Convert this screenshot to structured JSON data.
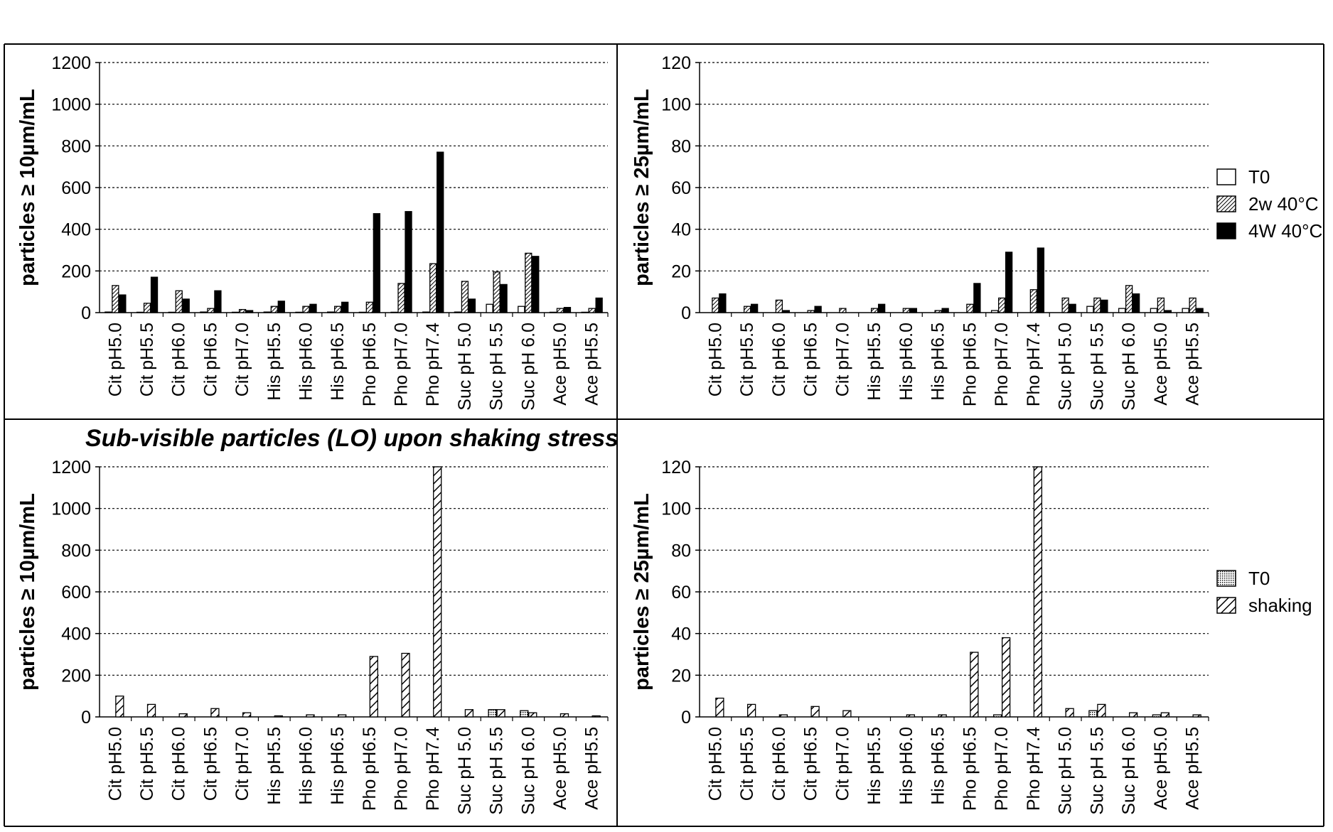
{
  "section_title": "Sub-visible particles (LO) upon shaking stress",
  "colors": {
    "T0": "#ffffff",
    "2w": "hatch-dense",
    "4w": "#000000",
    "shaking": "hatch-wide"
  },
  "legends": {
    "thermal": [
      "T0",
      "2w 40°C",
      "4W 40°C"
    ],
    "shaking": [
      "T0",
      "shaking"
    ]
  },
  "chart_data": [
    {
      "type": "bar",
      "ylabel": "particles ≥ 10µm/mL",
      "ylim": [
        0,
        1200
      ],
      "yticks": [
        "0",
        "200",
        "400",
        "600",
        "800",
        "1000",
        "1200"
      ],
      "grid": true,
      "categories": [
        "Cit pH5.0",
        "Cit pH5.5",
        "Cit pH6.0",
        "Cit pH6.5",
        "Cit pH7.0",
        "His pH5.5",
        "His pH6.0",
        "His pH6.5",
        "Pho pH6.5",
        "Pho pH7.0",
        "Pho pH7.4",
        "Suc pH 5.0",
        "Suc pH 5.5",
        "Suc pH 6.0",
        "Ace pH5.0",
        "Ace pH5.5"
      ],
      "series": [
        {
          "name": "T0",
          "values": [
            3,
            2,
            2,
            3,
            2,
            3,
            2,
            3,
            2,
            2,
            3,
            3,
            40,
            30,
            2,
            2
          ]
        },
        {
          "name": "2w 40°C",
          "values": [
            130,
            45,
            105,
            20,
            15,
            30,
            30,
            30,
            50,
            140,
            235,
            150,
            195,
            285,
            20,
            20
          ]
        },
        {
          "name": "4W 40°C",
          "values": [
            85,
            170,
            65,
            105,
            10,
            55,
            40,
            50,
            475,
            485,
            770,
            65,
            135,
            270,
            25,
            70
          ]
        }
      ]
    },
    {
      "type": "bar",
      "ylabel": "particles ≥ 25µm/mL",
      "ylim": [
        0,
        120
      ],
      "yticks": [
        "0",
        "20",
        "40",
        "60",
        "80",
        "100",
        "120"
      ],
      "grid": true,
      "categories": [
        "Cit pH5.0",
        "Cit pH5.5",
        "Cit pH6.0",
        "Cit pH6.5",
        "Cit pH7.0",
        "His pH5.5",
        "His pH6.0",
        "His pH6.5",
        "Pho pH6.5",
        "Pho pH7.0",
        "Pho pH7.4",
        "Suc pH 5.0",
        "Suc pH 5.5",
        "Suc pH 6.0",
        "Ace pH5.0",
        "Ace pH5.5"
      ],
      "series": [
        {
          "name": "T0",
          "values": [
            0,
            0,
            0,
            0,
            0,
            0,
            0,
            0,
            0,
            1,
            0,
            0,
            3,
            2,
            2,
            2
          ]
        },
        {
          "name": "2w 40°C",
          "values": [
            7,
            3,
            6,
            1,
            2,
            2,
            2,
            1,
            4,
            7,
            11,
            7,
            7,
            13,
            7,
            7
          ]
        },
        {
          "name": "4W 40°C",
          "values": [
            9,
            4,
            1,
            3,
            0,
            4,
            2,
            2,
            14,
            29,
            31,
            4,
            6,
            9,
            1,
            2
          ]
        }
      ]
    },
    {
      "type": "bar",
      "ylabel": "particles ≥ 10µm/mL",
      "ylim": [
        0,
        1200
      ],
      "yticks": [
        "0",
        "200",
        "400",
        "600",
        "800",
        "1000",
        "1200"
      ],
      "grid": true,
      "categories": [
        "Cit pH5.0",
        "Cit pH5.5",
        "Cit pH6.0",
        "Cit pH6.5",
        "Cit pH7.0",
        "His pH5.5",
        "His pH6.0",
        "His pH6.5",
        "Pho pH6.5",
        "Pho pH7.0",
        "Pho pH7.4",
        "Suc pH 5.0",
        "Suc pH 5.5",
        "Suc pH 6.0",
        "Ace pH5.0",
        "Ace pH5.5"
      ],
      "series": [
        {
          "name": "T0",
          "values": [
            0,
            0,
            0,
            0,
            0,
            0,
            0,
            0,
            0,
            0,
            0,
            0,
            35,
            30,
            0,
            0
          ]
        },
        {
          "name": "shaking",
          "values": [
            100,
            60,
            15,
            40,
            20,
            5,
            10,
            10,
            290,
            305,
            1200,
            35,
            35,
            20,
            15,
            5
          ]
        }
      ]
    },
    {
      "type": "bar",
      "ylabel": "particles ≥ 25µm/mL",
      "ylim": [
        0,
        120
      ],
      "yticks": [
        "0",
        "20",
        "40",
        "60",
        "80",
        "100",
        "120"
      ],
      "grid": true,
      "categories": [
        "Cit pH5.0",
        "Cit pH5.5",
        "Cit pH6.0",
        "Cit pH6.5",
        "Cit pH7.0",
        "His pH5.5",
        "His pH6.0",
        "His pH6.5",
        "Pho pH6.5",
        "Pho pH7.0",
        "Pho pH7.4",
        "Suc pH 5.0",
        "Suc pH 5.5",
        "Suc pH 6.0",
        "Ace pH5.0",
        "Ace pH5.5"
      ],
      "series": [
        {
          "name": "T0",
          "values": [
            0,
            0,
            0,
            0,
            0,
            0,
            0,
            0,
            0,
            1,
            0,
            0,
            3,
            0,
            1,
            0
          ]
        },
        {
          "name": "shaking",
          "values": [
            9,
            6,
            1,
            5,
            3,
            0,
            1,
            1,
            31,
            38,
            120,
            4,
            6,
            2,
            2,
            1
          ]
        }
      ]
    }
  ]
}
